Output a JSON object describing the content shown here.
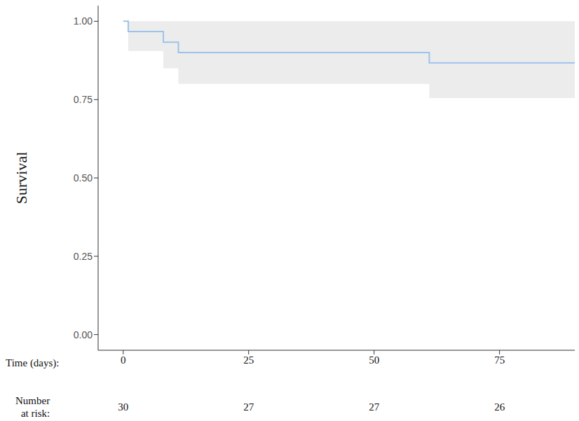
{
  "chart_data": {
    "type": "line",
    "line_style": "step",
    "color": "#9dc3ea",
    "ylabel": "Survival",
    "xlabel": "Time (days):",
    "x": [
      0,
      1,
      8,
      11,
      61,
      90
    ],
    "values": [
      1,
      0.967,
      0.933,
      0.9,
      0.867,
      0.867
    ],
    "ci_lower": [
      1,
      0.905,
      0.85,
      0.8,
      0.755,
      0.755
    ],
    "ci_upper": [
      1,
      1,
      1,
      1,
      1,
      1
    ],
    "xlim": [
      -5,
      90
    ],
    "xticks": [
      0,
      25,
      50,
      75
    ],
    "ylim": [
      -0.05,
      1.05
    ],
    "yticks": [
      {
        "value": 0,
        "label": "0.00"
      },
      {
        "value": 0.25,
        "label": "0.25"
      },
      {
        "value": 0.5,
        "label": "0.50"
      },
      {
        "value": 0.75,
        "label": "0.75"
      },
      {
        "value": 1,
        "label": "1.00"
      }
    ],
    "grid": false,
    "risk_table": {
      "label_lines": [
        "Number",
        "at risk:"
      ],
      "x": [
        0,
        25,
        50,
        75
      ],
      "values": [
        30,
        27,
        27,
        26
      ]
    }
  }
}
